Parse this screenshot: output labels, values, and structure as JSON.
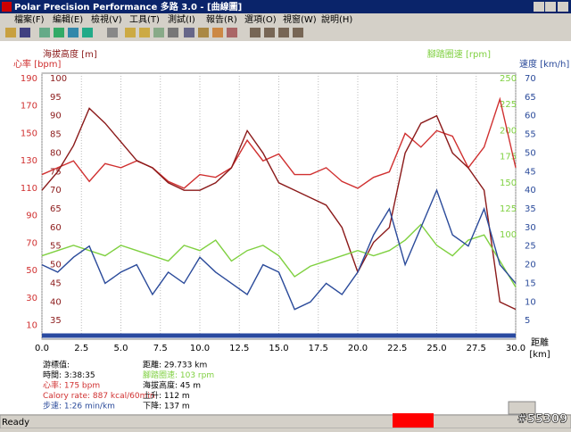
{
  "window": {
    "title": "Polar Precision Performance 多路 3.0 - [曲線圖]",
    "menu": [
      "檔案(F)",
      "編輯(E)",
      "檢視(V)",
      "工具(T)",
      "測試(I)",
      "報告(R)",
      "選項(O)",
      "視窗(W)",
      "說明(H)"
    ],
    "status": "Ready",
    "watermark": "#55309"
  },
  "chart_data": {
    "type": "line",
    "x": [
      0,
      1,
      2,
      3,
      4,
      5,
      6,
      7,
      8,
      9,
      10,
      11,
      12,
      13,
      14,
      15,
      16,
      17,
      18,
      19,
      20,
      21,
      22,
      23,
      24,
      25,
      26,
      27,
      28,
      29,
      30
    ],
    "xlim": [
      0,
      30
    ],
    "xticks": [
      {
        "value": 0,
        "label": "0.0"
      },
      2.5,
      {
        "value": 5,
        "label": "5.0"
      },
      7.5,
      {
        "value": 10,
        "label": "10.0"
      },
      12.5,
      {
        "value": 15,
        "label": "15.0"
      },
      17.5,
      {
        "value": 20,
        "label": "20.0"
      },
      22.5,
      {
        "value": 25,
        "label": "25.0"
      },
      27.5,
      {
        "value": 30,
        "label": "30.0"
      }
    ],
    "xlabel": "距離",
    "xunit": "[km]",
    "ylabel": "心率 [bpm]",
    "ylim": [
      0,
      190
    ],
    "yticks": [
      10,
      30,
      50,
      70,
      90,
      110,
      130,
      150,
      170,
      190
    ],
    "y3label": "海拔高度 [m]",
    "y3lim": [
      30,
      100
    ],
    "y3ticks": [
      35,
      40,
      45,
      50,
      55,
      60,
      65,
      70,
      75,
      80,
      85,
      90,
      95,
      100
    ],
    "y2label": "速度 [km/h]",
    "y2lim": [
      0,
      70
    ],
    "y2ticks": [
      5,
      10,
      15,
      20,
      25,
      30,
      35,
      40,
      45,
      50,
      55,
      60,
      65,
      70
    ],
    "y4label": "腳踏圈速 [rpm]",
    "y4lim": [
      0,
      250
    ],
    "y4ticks": [
      100,
      125,
      150,
      175,
      200,
      225,
      250
    ],
    "grid": true,
    "series": [
      {
        "name": "心率",
        "color": "#d03030",
        "axis": "y",
        "values": [
          120,
          125,
          130,
          115,
          128,
          125,
          130,
          125,
          115,
          110,
          120,
          118,
          125,
          145,
          130,
          135,
          120,
          120,
          125,
          115,
          110,
          118,
          122,
          150,
          140,
          152,
          148,
          125,
          140,
          175,
          125
        ]
      },
      {
        "name": "海拔高度",
        "color": "#8b1a1a",
        "axis": "y3",
        "values": [
          70,
          75,
          82,
          92,
          88,
          83,
          78,
          76,
          72,
          70,
          70,
          72,
          76,
          86,
          80,
          72,
          70,
          68,
          66,
          60,
          48,
          56,
          60,
          80,
          88,
          90,
          80,
          76,
          70,
          40,
          38
        ]
      },
      {
        "name": "腳踏圈速",
        "color": "#7fd040",
        "axis": "y4",
        "values": [
          80,
          85,
          90,
          85,
          80,
          90,
          85,
          80,
          75,
          90,
          85,
          95,
          75,
          85,
          90,
          80,
          60,
          70,
          75,
          80,
          85,
          80,
          85,
          95,
          110,
          90,
          80,
          95,
          100,
          75,
          50
        ]
      },
      {
        "name": "速度",
        "color": "#2a4a9a",
        "axis": "y2",
        "values": [
          20,
          18,
          22,
          25,
          15,
          18,
          20,
          12,
          18,
          15,
          22,
          18,
          15,
          12,
          20,
          18,
          8,
          10,
          15,
          12,
          18,
          28,
          35,
          20,
          30,
          40,
          28,
          25,
          35,
          20,
          15
        ]
      }
    ]
  },
  "info": {
    "col1": [
      "游標值:",
      "時間: 3:38:35",
      "心率: 175 bpm",
      "Calory rate: 887 kcal/60min",
      "步速: 1:26 min/km"
    ],
    "col2": [
      "距離: 29.733 km",
      "腳踏圈速: 103 rpm",
      "海拔高度: 45 m",
      "上升: 112 m",
      "下降: 137 m"
    ]
  }
}
